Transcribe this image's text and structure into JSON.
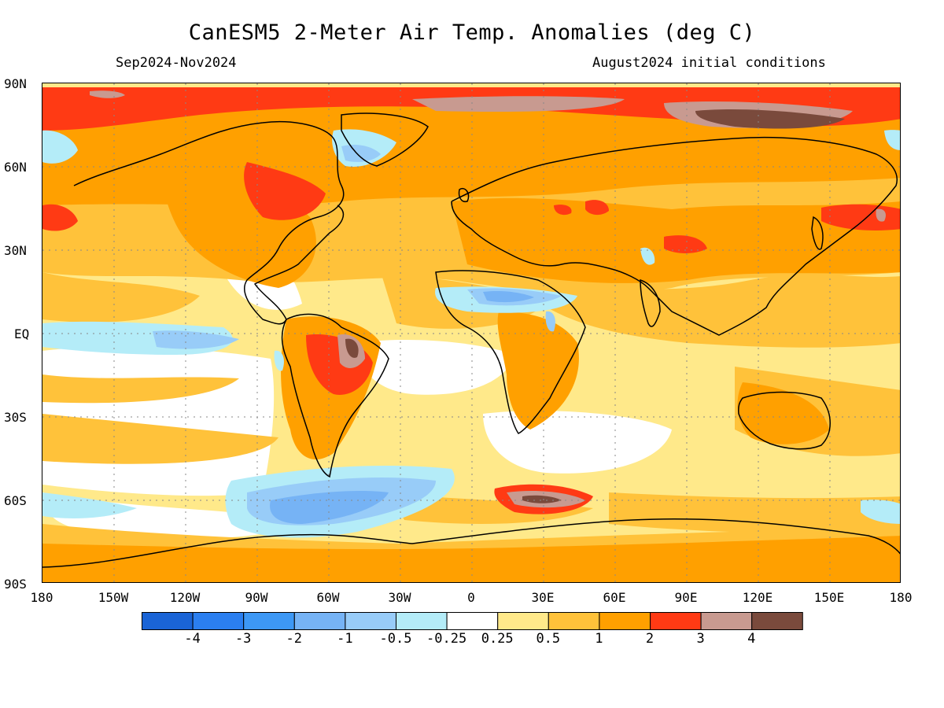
{
  "title": "CanESM5 2-Meter Air Temp. Anomalies (deg C)",
  "period": "Sep2024-Nov2024",
  "init": "August2024 initial conditions",
  "lat_labels": [
    "90N",
    "60N",
    "30N",
    "EQ",
    "30S",
    "60S",
    "90S"
  ],
  "lon_labels": [
    "180",
    "150W",
    "120W",
    "90W",
    "60W",
    "30W",
    "0",
    "30E",
    "60E",
    "90E",
    "120E",
    "150E",
    "180"
  ],
  "legend": {
    "colors": [
      "#1a64d6",
      "#2b7ff0",
      "#3d98f5",
      "#76b3f5",
      "#98ccf8",
      "#b4ecf8",
      "#ffffff",
      "#ffe98a",
      "#ffc23a",
      "#ffa000",
      "#ff3a14",
      "#c89a90",
      "#7a4a3c"
    ],
    "ticks": [
      "-4",
      "-3",
      "-2",
      "-1",
      "-0.5",
      "-0.25",
      "0.25",
      "0.5",
      "1",
      "2",
      "3",
      "4"
    ]
  }
}
